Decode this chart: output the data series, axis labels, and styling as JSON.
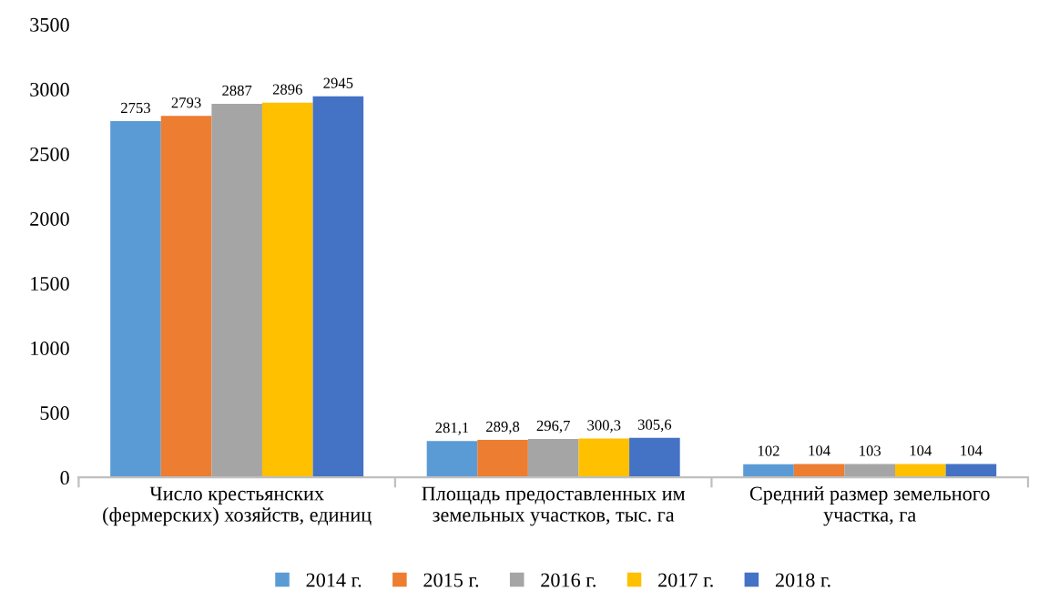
{
  "chart_data": {
    "type": "bar",
    "categories": [
      "Число крестьянских\n(фермерских) хозяйств, единиц",
      "Площадь предоставленных им\nземельных участков, тыс. га",
      "Средний размер земельного\nучастка, га"
    ],
    "series": [
      {
        "name": "2014 г.",
        "color": "#5b9bd5",
        "values": [
          2753,
          281.1,
          102
        ],
        "value_labels": [
          "2753",
          "281,1",
          "102"
        ]
      },
      {
        "name": "2015 г.",
        "color": "#ed7d31",
        "values": [
          2793,
          289.8,
          104
        ],
        "value_labels": [
          "2793",
          "289,8",
          "104"
        ]
      },
      {
        "name": "2016 г.",
        "color": "#a5a5a5",
        "values": [
          2887,
          296.7,
          103
        ],
        "value_labels": [
          "2887",
          "296,7",
          "103"
        ]
      },
      {
        "name": "2017 г.",
        "color": "#ffc000",
        "values": [
          2896,
          300.3,
          104
        ],
        "value_labels": [
          "2896",
          "300,3",
          "104"
        ]
      },
      {
        "name": "2018 г.",
        "color": "#4472c4",
        "values": [
          2945,
          305.6,
          104
        ],
        "value_labels": [
          "2945",
          "305,6",
          "104"
        ]
      }
    ],
    "ylim": [
      0,
      3500
    ],
    "yticks": [
      0,
      500,
      1000,
      1500,
      2000,
      2500,
      3000,
      3500
    ],
    "grid": false,
    "legend": "bottom"
  }
}
